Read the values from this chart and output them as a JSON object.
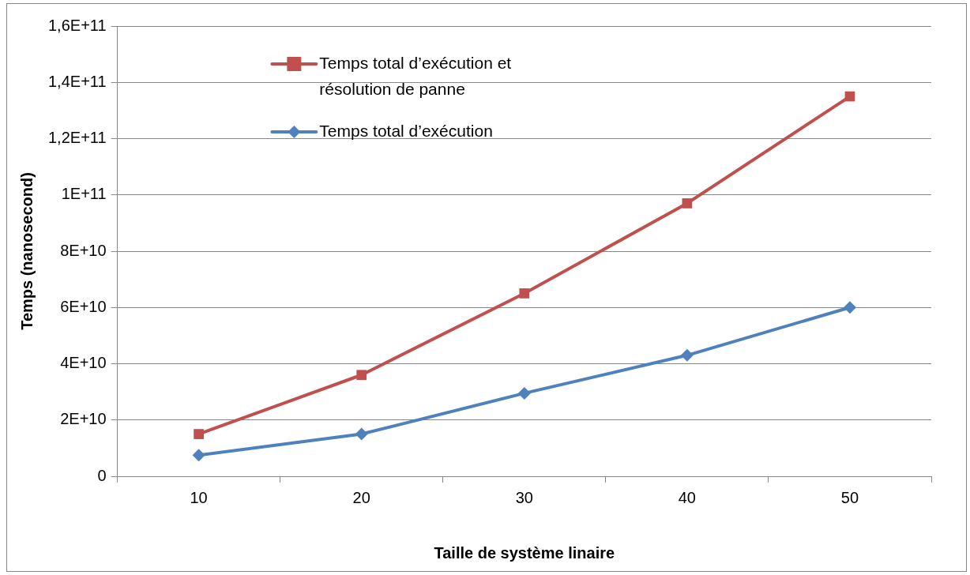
{
  "chart_data": {
    "type": "line",
    "xlabel": "Taille de système linaire",
    "ylabel": "Temps (nanosecond)",
    "categories": [
      "10",
      "20",
      "30",
      "40",
      "50"
    ],
    "series": [
      {
        "name": "Temps total d’exécution et résolution de panne",
        "color": "#c0504d",
        "marker": "square",
        "values": [
          15000000000,
          36000000000,
          65000000000,
          97000000000,
          135000000000
        ]
      },
      {
        "name": "Temps total d’exécution",
        "color": "#4f81bd",
        "marker": "diamond",
        "values": [
          7500000000,
          15000000000,
          29500000000,
          43000000000,
          60000000000
        ]
      }
    ],
    "ylim": [
      0,
      160000000000
    ],
    "yticks": [
      {
        "value": 0,
        "label": "0"
      },
      {
        "value": 20000000000,
        "label": "2E+10"
      },
      {
        "value": 40000000000,
        "label": "4E+10"
      },
      {
        "value": 60000000000,
        "label": "6E+10"
      },
      {
        "value": 80000000000,
        "label": "8E+10"
      },
      {
        "value": 100000000000,
        "label": "1E+11"
      },
      {
        "value": 120000000000,
        "label": "1,2E+11"
      },
      {
        "value": 140000000000,
        "label": "1,4E+11"
      },
      {
        "value": 160000000000,
        "label": "1,6E+11"
      }
    ],
    "grid": "y",
    "legend": "top left",
    "line_style": "solid"
  }
}
